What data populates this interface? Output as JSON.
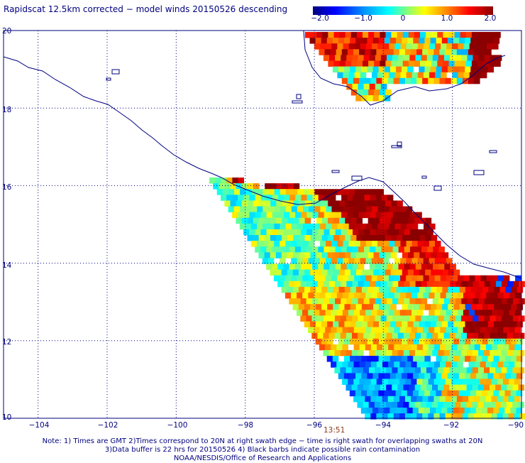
{
  "title": "Rapidscat 12.5km corrected − model winds 20150526 descending",
  "colorbar": {
    "ticks": [
      "−2.0",
      "−1.0",
      "0",
      "1.0",
      "2.0"
    ],
    "colors": [
      "#000080",
      "#0000ff",
      "#00a0ff",
      "#00ffff",
      "#80ff80",
      "#ffff00",
      "#ff8000",
      "#ff0000",
      "#8b0000"
    ]
  },
  "latitude_labels": [
    "20",
    "18",
    "16",
    "14",
    "12",
    "10"
  ],
  "longitude_labels": [
    "−104",
    "−102",
    "−100",
    "−98",
    "−96",
    "−94",
    "−92",
    "−90"
  ],
  "swath_time": "13:51",
  "notes": [
    "Note: 1) Times are GMT 2)Times correspond to 20N at right swath edge − time is right swath for overlapping swaths at 20N",
    "3)Data buffer is 22 hrs for 20150526 4) Black barbs indicate possible rain contamination",
    "NOAA/NESDIS/Office of Research and Applications"
  ],
  "map": {
    "lon_range": [
      -105,
      -90
    ],
    "lat_range": [
      10,
      20
    ],
    "grid_lons": [
      -104,
      -102,
      -100,
      -98,
      -96,
      -94,
      -92
    ],
    "grid_lats": [
      18,
      16,
      14,
      12
    ],
    "colors": {
      "coast": "#000080",
      "grid": "#000080",
      "frame": "#000080"
    }
  }
}
